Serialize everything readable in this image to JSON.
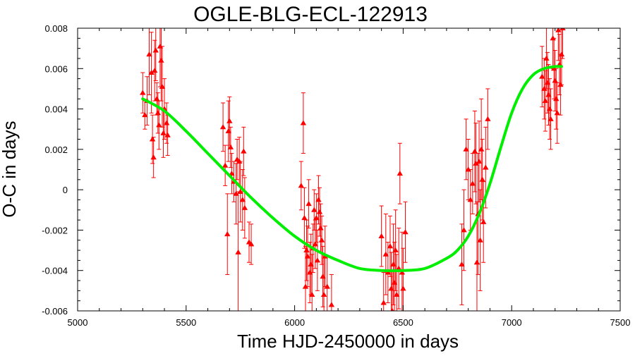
{
  "chart_data": {
    "type": "scatter",
    "title": "OGLE-BLG-ECL-122913",
    "xlabel": "Time HJD-2450000 in days",
    "ylabel": "O-C in days",
    "xlim": [
      5000,
      7500
    ],
    "ylim": [
      -0.006,
      0.008
    ],
    "x_ticks": [
      5000,
      5500,
      6000,
      6500,
      7000,
      7500
    ],
    "x_tick_labels": [
      "5000",
      "5500",
      "6000",
      "6500",
      "7000",
      "7500"
    ],
    "y_ticks": [
      -0.006,
      -0.004,
      -0.002,
      0,
      0.002,
      0.004,
      0.006,
      0.008
    ],
    "y_tick_labels": [
      "-0.006",
      "-0.004",
      "-0.002",
      "0",
      "0.002",
      "0.004",
      "0.006",
      "0.008"
    ],
    "grid": false,
    "colors": {
      "points": "#ff0000",
      "fit": "#00ee00",
      "axes": "#000000"
    },
    "series": [
      {
        "kind": "points_with_errorbars",
        "marker": "triangle",
        "points": [
          {
            "x": 5300,
            "y": 0.0048,
            "err": 0.001
          },
          {
            "x": 5310,
            "y": 0.0037,
            "err": 0.0007
          },
          {
            "x": 5320,
            "y": 0.0044,
            "err": 0.0012
          },
          {
            "x": 5330,
            "y": 0.0067,
            "err": 0.002
          },
          {
            "x": 5340,
            "y": 0.0058,
            "err": 0.002
          },
          {
            "x": 5345,
            "y": 0.0025,
            "err": 0.0012
          },
          {
            "x": 5350,
            "y": 0.0016,
            "err": 0.001
          },
          {
            "x": 5355,
            "y": 0.0059,
            "err": 0.0015
          },
          {
            "x": 5360,
            "y": 0.0069,
            "err": 0.0015
          },
          {
            "x": 5365,
            "y": 0.0045,
            "err": 0.0008
          },
          {
            "x": 5370,
            "y": 0.0038,
            "err": 0.001
          },
          {
            "x": 5375,
            "y": 0.0032,
            "err": 0.0012
          },
          {
            "x": 5380,
            "y": 0.0071,
            "err": 0.002
          },
          {
            "x": 5385,
            "y": 0.0064,
            "err": 0.002
          },
          {
            "x": 5390,
            "y": 0.0051,
            "err": 0.002
          },
          {
            "x": 5395,
            "y": 0.0028,
            "err": 0.0012
          },
          {
            "x": 5400,
            "y": 0.004,
            "err": 0.0015
          },
          {
            "x": 5410,
            "y": 0.0033,
            "err": 0.001
          },
          {
            "x": 5415,
            "y": 0.0027,
            "err": 0.001
          },
          {
            "x": 5670,
            "y": 0.0031,
            "err": 0.0012
          },
          {
            "x": 5680,
            "y": 0.0012,
            "err": 0.001
          },
          {
            "x": 5690,
            "y": -0.0022,
            "err": 0.002
          },
          {
            "x": 5695,
            "y": 0.0029,
            "err": 0.0015
          },
          {
            "x": 5700,
            "y": 0.0034,
            "err": 0.0012
          },
          {
            "x": 5705,
            "y": 0.0021,
            "err": 0.001
          },
          {
            "x": 5710,
            "y": 0.0008,
            "err": 0.001
          },
          {
            "x": 5720,
            "y": 0.0004,
            "err": 0.001
          },
          {
            "x": 5730,
            "y": -0.0002,
            "err": 0.0015
          },
          {
            "x": 5735,
            "y": 0.0015,
            "err": 0.001
          },
          {
            "x": 5740,
            "y": -0.0031,
            "err": 0.003
          },
          {
            "x": 5745,
            "y": 0.0014,
            "err": 0.0012
          },
          {
            "x": 5750,
            "y": -0.0001,
            "err": 0.0015
          },
          {
            "x": 5760,
            "y": -0.0005,
            "err": 0.0015
          },
          {
            "x": 5765,
            "y": 0.0019,
            "err": 0.0012
          },
          {
            "x": 5770,
            "y": -0.0009,
            "err": 0.0015
          },
          {
            "x": 5790,
            "y": -0.0026,
            "err": 0.001
          },
          {
            "x": 5800,
            "y": -0.0027,
            "err": 0.001
          },
          {
            "x": 6030,
            "y": 0.0002,
            "err": 0.0012
          },
          {
            "x": 6040,
            "y": 0.0033,
            "err": 0.0015
          },
          {
            "x": 6045,
            "y": -0.0014,
            "err": 0.0015
          },
          {
            "x": 6050,
            "y": -0.0048,
            "err": 0.002
          },
          {
            "x": 6055,
            "y": -0.003,
            "err": 0.0015
          },
          {
            "x": 6060,
            "y": -0.0033,
            "err": 0.0015
          },
          {
            "x": 6065,
            "y": -0.0007,
            "err": 0.0012
          },
          {
            "x": 6070,
            "y": -0.0041,
            "err": 0.0015
          },
          {
            "x": 6075,
            "y": -0.0037,
            "err": 0.0015
          },
          {
            "x": 6080,
            "y": -0.0052,
            "err": 0.002
          },
          {
            "x": 6085,
            "y": -0.0029,
            "err": 0.0012
          },
          {
            "x": 6090,
            "y": -0.001,
            "err": 0.001
          },
          {
            "x": 6095,
            "y": -0.0027,
            "err": 0.0012
          },
          {
            "x": 6100,
            "y": -0.0014,
            "err": 0.0012
          },
          {
            "x": 6105,
            "y": -0.0035,
            "err": 0.0015
          },
          {
            "x": 6110,
            "y": -0.0005,
            "err": 0.0012
          },
          {
            "x": 6115,
            "y": -0.0011,
            "err": 0.0012
          },
          {
            "x": 6120,
            "y": -0.0019,
            "err": 0.0012
          },
          {
            "x": 6125,
            "y": -0.0025,
            "err": 0.0012
          },
          {
            "x": 6130,
            "y": -0.0043,
            "err": 0.0015
          },
          {
            "x": 6135,
            "y": -0.0052,
            "err": 0.002
          },
          {
            "x": 6140,
            "y": -0.0033,
            "err": 0.0015
          },
          {
            "x": 6150,
            "y": -0.0048,
            "err": 0.0015
          },
          {
            "x": 6170,
            "y": -0.0057,
            "err": 0.0015
          },
          {
            "x": 6400,
            "y": -0.0023,
            "err": 0.0015
          },
          {
            "x": 6410,
            "y": -0.0056,
            "err": 0.0015
          },
          {
            "x": 6420,
            "y": -0.0032,
            "err": 0.002
          },
          {
            "x": 6430,
            "y": -0.0041,
            "err": 0.0015
          },
          {
            "x": 6440,
            "y": -0.0028,
            "err": 0.0015
          },
          {
            "x": 6445,
            "y": -0.0049,
            "err": 0.0018
          },
          {
            "x": 6450,
            "y": -0.006,
            "err": 0.002
          },
          {
            "x": 6455,
            "y": -0.0037,
            "err": 0.002
          },
          {
            "x": 6460,
            "y": -0.0046,
            "err": 0.002
          },
          {
            "x": 6465,
            "y": -0.003,
            "err": 0.002
          },
          {
            "x": 6470,
            "y": -0.0052,
            "err": 0.002
          },
          {
            "x": 6480,
            "y": -0.0039,
            "err": 0.002
          },
          {
            "x": 6485,
            "y": 0.0008,
            "err": 0.0015
          },
          {
            "x": 6495,
            "y": -0.0041,
            "err": 0.002
          },
          {
            "x": 6500,
            "y": -0.0049,
            "err": 0.002
          },
          {
            "x": 6510,
            "y": -0.0021,
            "err": 0.0015
          },
          {
            "x": 6770,
            "y": -0.0037,
            "err": 0.002
          },
          {
            "x": 6780,
            "y": -0.002,
            "err": 0.002
          },
          {
            "x": 6790,
            "y": 0.002,
            "err": 0.0015
          },
          {
            "x": 6800,
            "y": 0.001,
            "err": 0.0015
          },
          {
            "x": 6810,
            "y": -0.0005,
            "err": 0.0015
          },
          {
            "x": 6820,
            "y": 0.0003,
            "err": 0.0015
          },
          {
            "x": 6830,
            "y": 0.0019,
            "err": 0.002
          },
          {
            "x": 6835,
            "y": 0.0013,
            "err": 0.002
          },
          {
            "x": 6840,
            "y": -0.0036,
            "err": 0.003
          },
          {
            "x": 6845,
            "y": -0.0012,
            "err": 0.003
          },
          {
            "x": 6850,
            "y": 0.0014,
            "err": 0.002
          },
          {
            "x": 6855,
            "y": -0.0025,
            "err": 0.0025
          },
          {
            "x": 6860,
            "y": 0.002,
            "err": 0.0025
          },
          {
            "x": 6865,
            "y": 0.0005,
            "err": 0.002
          },
          {
            "x": 6870,
            "y": -0.0016,
            "err": 0.002
          },
          {
            "x": 6880,
            "y": 0.0011,
            "err": 0.002
          },
          {
            "x": 6890,
            "y": 0.0035,
            "err": 0.0015
          },
          {
            "x": 7140,
            "y": 0.0056,
            "err": 0.0015
          },
          {
            "x": 7150,
            "y": 0.005,
            "err": 0.0015
          },
          {
            "x": 7155,
            "y": 0.0044,
            "err": 0.0015
          },
          {
            "x": 7160,
            "y": 0.0065,
            "err": 0.0015
          },
          {
            "x": 7165,
            "y": 0.0053,
            "err": 0.0015
          },
          {
            "x": 7170,
            "y": 0.0047,
            "err": 0.0015
          },
          {
            "x": 7175,
            "y": 0.004,
            "err": 0.0015
          },
          {
            "x": 7180,
            "y": 0.0035,
            "err": 0.0015
          },
          {
            "x": 7190,
            "y": 0.0075,
            "err": 0.0015
          },
          {
            "x": 7195,
            "y": 0.006,
            "err": 0.0015
          },
          {
            "x": 7200,
            "y": 0.0054,
            "err": 0.0015
          },
          {
            "x": 7205,
            "y": 0.0045,
            "err": 0.0015
          },
          {
            "x": 7210,
            "y": 0.0038,
            "err": 0.0015
          },
          {
            "x": 7215,
            "y": 0.0079,
            "err": 0.0015
          },
          {
            "x": 7220,
            "y": 0.0062,
            "err": 0.0015
          },
          {
            "x": 7225,
            "y": 0.0052,
            "err": 0.0015
          },
          {
            "x": 7230,
            "y": 0.0067,
            "err": 0.0015
          },
          {
            "x": 7235,
            "y": 0.008,
            "err": 0.0015
          }
        ]
      },
      {
        "kind": "fit_curve",
        "x": [
          5300,
          5400,
          5500,
          5600,
          5700,
          5800,
          5900,
          6000,
          6100,
          6200,
          6300,
          6400,
          6500,
          6600,
          6700,
          6750,
          6800,
          6850,
          6900,
          6950,
          7000,
          7050,
          7100,
          7150,
          7200,
          7230
        ],
        "y": [
          0.0045,
          0.0039,
          0.0029,
          0.0018,
          0.0007,
          -0.0004,
          -0.0014,
          -0.0023,
          -0.003,
          -0.0035,
          -0.0039,
          -0.004,
          -0.004,
          -0.0039,
          -0.0034,
          -0.003,
          -0.0023,
          -0.0012,
          0.0003,
          0.0021,
          0.0038,
          0.005,
          0.0057,
          0.006,
          0.0061,
          0.0061
        ]
      }
    ]
  }
}
